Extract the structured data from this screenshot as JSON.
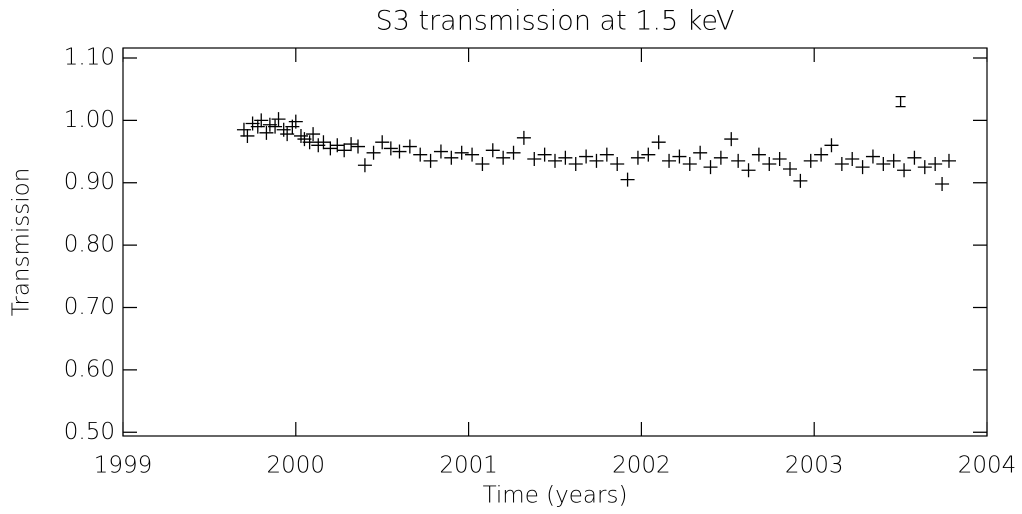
{
  "chart_data": {
    "type": "scatter",
    "title": "S3 transmission at 1.5 keV",
    "x_label": "Time (years)",
    "y_label": "Transmission",
    "xlim": [
      1999,
      2004
    ],
    "xticks": [
      1999,
      2000,
      2001,
      2002,
      2003,
      2004
    ],
    "ylim": [
      0.494,
      1.116
    ],
    "yticks": [
      {
        "value": 0.5,
        "label": "0.50"
      },
      {
        "value": 0.6,
        "label": "0.60"
      },
      {
        "value": 0.7,
        "label": "0.70"
      },
      {
        "value": 0.8,
        "label": "0.80"
      },
      {
        "value": 0.9,
        "label": "0.90"
      },
      {
        "value": 1.0,
        "label": "1.00"
      },
      {
        "value": 1.1,
        "label": "1.10"
      }
    ],
    "color": "#000000",
    "x": [
      1999.7,
      1999.72,
      1999.75,
      1999.78,
      1999.8,
      1999.83,
      1999.85,
      1999.88,
      1999.9,
      1999.93,
      1999.95,
      1999.98,
      2000.0,
      2000.03,
      2000.05,
      2000.08,
      2000.1,
      2000.13,
      2000.16,
      2000.2,
      2000.24,
      2000.28,
      2000.32,
      2000.36,
      2000.4,
      2000.45,
      2000.5,
      2000.55,
      2000.6,
      2000.66,
      2000.72,
      2000.78,
      2000.84,
      2000.9,
      2000.96,
      2001.02,
      2001.08,
      2001.14,
      2001.2,
      2001.26,
      2001.32,
      2001.38,
      2001.44,
      2001.5,
      2001.56,
      2001.62,
      2001.68,
      2001.74,
      2001.8,
      2001.86,
      2001.92,
      2001.98,
      2002.04,
      2002.1,
      2002.16,
      2002.22,
      2002.28,
      2002.34,
      2002.4,
      2002.46,
      2002.52,
      2002.56,
      2002.62,
      2002.68,
      2002.74,
      2002.8,
      2002.86,
      2002.92,
      2002.98,
      2003.04,
      2003.1,
      2003.16,
      2003.22,
      2003.28,
      2003.34,
      2003.4,
      2003.46,
      2003.52,
      2003.58,
      2003.64,
      2003.7,
      2003.74,
      2003.78
    ],
    "values": [
      0.985,
      0.975,
      0.995,
      0.99,
      1.0,
      0.98,
      0.993,
      0.99,
      1.002,
      0.985,
      0.978,
      0.99,
      0.998,
      0.975,
      0.97,
      0.965,
      0.978,
      0.96,
      0.965,
      0.955,
      0.96,
      0.952,
      0.962,
      0.958,
      0.928,
      0.948,
      0.965,
      0.955,
      0.95,
      0.958,
      0.945,
      0.935,
      0.95,
      0.94,
      0.948,
      0.945,
      0.93,
      0.952,
      0.94,
      0.948,
      0.972,
      0.938,
      0.945,
      0.935,
      0.94,
      0.93,
      0.942,
      0.935,
      0.945,
      0.93,
      0.905,
      0.94,
      0.945,
      0.965,
      0.935,
      0.942,
      0.93,
      0.948,
      0.925,
      0.94,
      0.97,
      0.935,
      0.92,
      0.945,
      0.93,
      0.938,
      0.922,
      0.903,
      0.935,
      0.945,
      0.96,
      0.93,
      0.938,
      0.925,
      0.942,
      0.93,
      0.935,
      0.92,
      0.94,
      0.925,
      0.93,
      0.898,
      0.935
    ],
    "error_bar": {
      "x": 2003.5,
      "y": 1.03,
      "error": 0.008
    }
  }
}
